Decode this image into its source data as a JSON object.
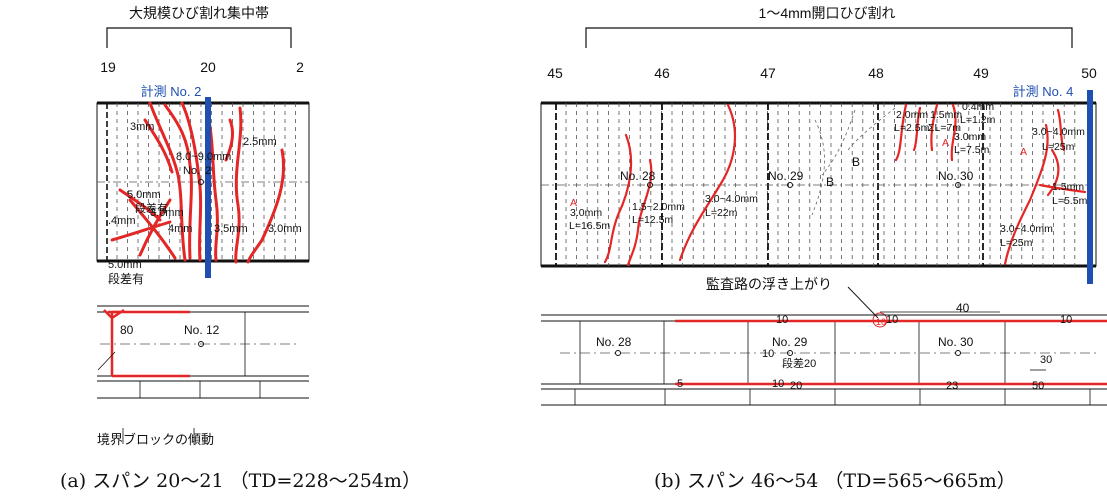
{
  "panel_a": {
    "header": "大規模ひび割れ集中帯",
    "stations": [
      "19",
      "20",
      "2"
    ],
    "measure_label": "計測 No. 2",
    "crack_labels": [
      "3mm",
      "2.5mm",
      "8.0~9.0mm",
      "No.",
      "2",
      "5.0mm",
      "段差有",
      "3.0mm",
      ".4mm",
      "4mm",
      "3.5mm",
      "3.0mm",
      "5.0mm",
      "段差有"
    ],
    "plan": {
      "value": "80",
      "point": "No. 12"
    },
    "note": "境界ブロックの傾動",
    "caption": "(a) スパン 20～21 （TD=228～254m）"
  },
  "panel_b": {
    "header": "1～4mm開口ひび割れ",
    "stations": [
      "45",
      "46",
      "47",
      "48",
      "49",
      "50"
    ],
    "measure_label": "計測 No. 4",
    "points": [
      "No. 28",
      "No. 29",
      "No. 30"
    ],
    "crack_labels": [
      "2.0mm",
      "L=2.5m",
      "1.5mm",
      "ΣL=7m",
      "0.4mm",
      "L=1.2m",
      "3.0mm",
      "L=7.5m",
      "3.0~4.0mm",
      "L=25m",
      "B",
      "B",
      "1.5mm",
      "L=5.5m",
      "3.0mm",
      "L=16.5m",
      "1.5~2.0mm",
      "L=12.5m",
      "3.0~4.0mm",
      "L=22m",
      "3.0~4.0mm",
      "L=25m",
      "A",
      "A",
      "A"
    ],
    "annotation": "監査路の浮き上がり",
    "plan_labels": [
      "10",
      "10",
      "10",
      "40",
      "10",
      "10",
      "段差20",
      "30",
      "5",
      "10",
      "20",
      "23",
      "50"
    ],
    "caption": "(b) スパン 46～54 （TD=565～665m）"
  },
  "colors": {
    "crack": "#e32626",
    "measure": "#1f4fb0",
    "line": "#111111",
    "grid": "#555555"
  }
}
